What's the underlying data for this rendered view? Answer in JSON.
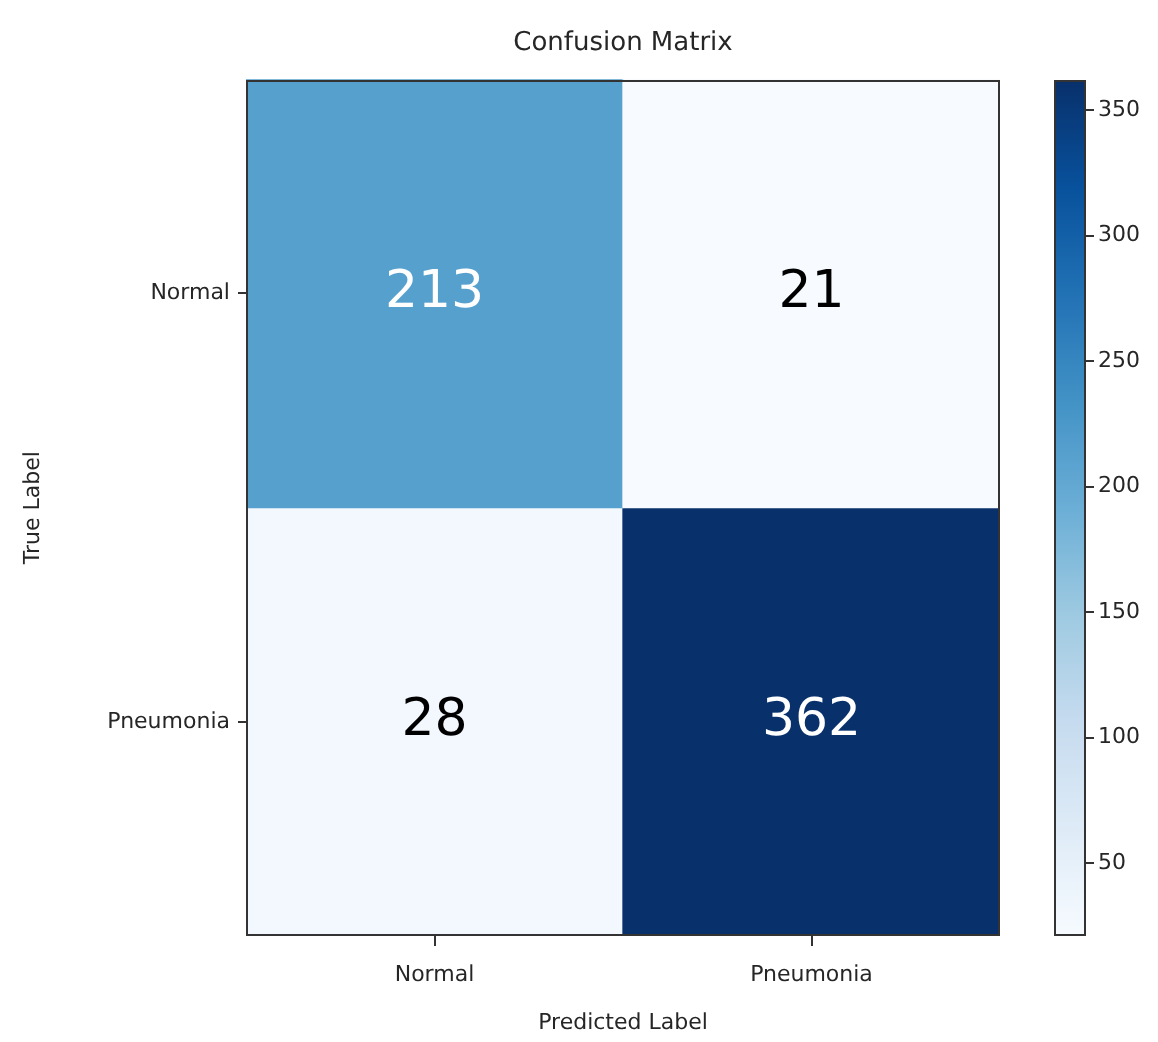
{
  "chart_data": {
    "type": "heatmap",
    "title": "Confusion Matrix",
    "xlabel": "Predicted Label",
    "ylabel": "True Label",
    "categories": [
      "Normal",
      "Pneumonia"
    ],
    "y_categories": [
      "Normal",
      "Pneumonia"
    ],
    "cells": [
      [
        213,
        21
      ],
      [
        28,
        362
      ]
    ],
    "clim": [
      21,
      362
    ],
    "cticks": [
      50,
      100,
      150,
      200,
      250,
      300,
      350
    ],
    "data_labels": true
  }
}
